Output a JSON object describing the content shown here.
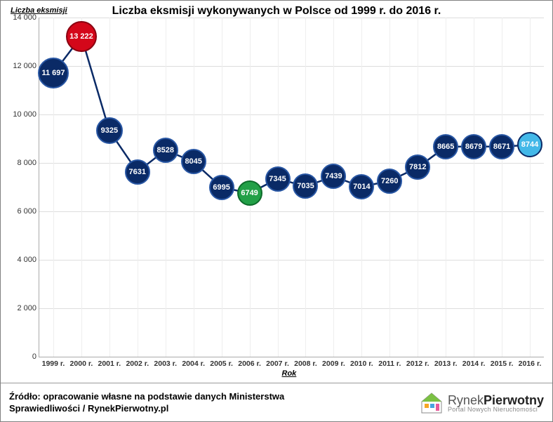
{
  "chart": {
    "type": "line",
    "title": "Liczba eksmisji wykonywanych w Polsce od 1999 r. do 2016 r.",
    "y_axis_label": "Liczba eksmisji",
    "x_axis_label": "Rok",
    "background_color": "#ffffff",
    "line_color": "#0a2a66",
    "line_width": 2.5,
    "grid_color": "#dddddd",
    "ylim": [
      0,
      14000
    ],
    "ytick_step": 2000,
    "yticks": [
      "0",
      "2 000",
      "4 000",
      "6 000",
      "8 000",
      "10 000",
      "12 000",
      "14 000"
    ],
    "categories": [
      "1999 r.",
      "2000 r.",
      "2001 r.",
      "2002 r.",
      "2003 r.",
      "2004 r.",
      "2005 r.",
      "2006 r.",
      "2007 r.",
      "2008 r.",
      "2009 r.",
      "2010 r.",
      "2011 r.",
      "2012 r.",
      "2013 r.",
      "2014 r.",
      "2015 r.",
      "2016 r."
    ],
    "series": [
      {
        "value": 11697,
        "label": "11 697",
        "fill": "#0a2a66",
        "border": "#2957a4",
        "size": 44,
        "font": 11
      },
      {
        "value": 13222,
        "label": "13 222",
        "fill": "#d4071a",
        "border": "#8a0010",
        "size": 44,
        "font": 11
      },
      {
        "value": 9325,
        "label": "9325",
        "fill": "#0a2a66",
        "border": "#2957a4",
        "size": 38,
        "font": 11
      },
      {
        "value": 7631,
        "label": "7631",
        "fill": "#0a2a66",
        "border": "#2957a4",
        "size": 36,
        "font": 11
      },
      {
        "value": 8528,
        "label": "8528",
        "fill": "#0a2a66",
        "border": "#2957a4",
        "size": 36,
        "font": 11
      },
      {
        "value": 8045,
        "label": "8045",
        "fill": "#0a2a66",
        "border": "#2957a4",
        "size": 36,
        "font": 11
      },
      {
        "value": 6995,
        "label": "6995",
        "fill": "#0a2a66",
        "border": "#2957a4",
        "size": 36,
        "font": 11
      },
      {
        "value": 6749,
        "label": "6749",
        "fill": "#22a047",
        "border": "#0d6b2a",
        "size": 36,
        "font": 11
      },
      {
        "value": 7345,
        "label": "7345",
        "fill": "#0a2a66",
        "border": "#2957a4",
        "size": 36,
        "font": 11
      },
      {
        "value": 7035,
        "label": "7035",
        "fill": "#0a2a66",
        "border": "#2957a4",
        "size": 36,
        "font": 11
      },
      {
        "value": 7439,
        "label": "7439",
        "fill": "#0a2a66",
        "border": "#2957a4",
        "size": 36,
        "font": 11
      },
      {
        "value": 7014,
        "label": "7014",
        "fill": "#0a2a66",
        "border": "#2957a4",
        "size": 36,
        "font": 11
      },
      {
        "value": 7260,
        "label": "7260",
        "fill": "#0a2a66",
        "border": "#2957a4",
        "size": 36,
        "font": 11
      },
      {
        "value": 7812,
        "label": "7812",
        "fill": "#0a2a66",
        "border": "#2957a4",
        "size": 36,
        "font": 11
      },
      {
        "value": 8665,
        "label": "8665",
        "fill": "#0a2a66",
        "border": "#2957a4",
        "size": 36,
        "font": 11
      },
      {
        "value": 8679,
        "label": "8679",
        "fill": "#0a2a66",
        "border": "#2957a4",
        "size": 36,
        "font": 11
      },
      {
        "value": 8671,
        "label": "8671",
        "fill": "#0a2a66",
        "border": "#2957a4",
        "size": 36,
        "font": 11
      },
      {
        "value": 8744,
        "label": "8744",
        "fill": "#43b8e8",
        "border": "#0a2a66",
        "size": 36,
        "font": 11
      }
    ],
    "title_fontsize": 16,
    "tick_fontsize": 11
  },
  "footer": {
    "source": "Źródło: opracowanie własne na podstawie danych Ministerstwa Sprawiedliwości / RynekPierwotny.pl",
    "logo_main_light": "Rynek",
    "logo_main_bold": "Pierwotny",
    "logo_sub": "Portal Nowych Nieruchomości"
  }
}
